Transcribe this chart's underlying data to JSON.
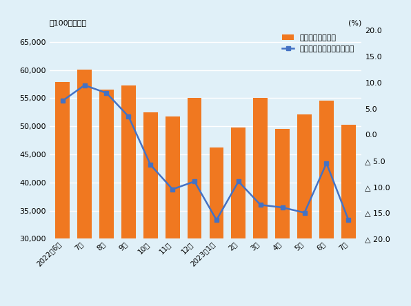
{
  "categories": [
    "2022年6月",
    "7月",
    "8月",
    "9月",
    "10月",
    "11月",
    "12月",
    "2023年1月",
    "2月",
    "3月",
    "4月",
    "5月",
    "6月",
    "7月"
  ],
  "bar_values": [
    57800,
    60100,
    56500,
    57200,
    52500,
    51700,
    55000,
    46200,
    49800,
    55000,
    49500,
    52100,
    54500,
    50300
  ],
  "line_values": [
    6.5,
    9.5,
    8.0,
    3.5,
    -5.8,
    -10.5,
    -9.0,
    -16.4,
    -9.0,
    -13.5,
    -14.0,
    -15.0,
    -5.5,
    -16.4
  ],
  "bar_color": "#F07820",
  "line_color": "#4472C4",
  "bg_color": "#E0F0F8",
  "left_ylim": [
    30000,
    67000
  ],
  "right_ylim": [
    -20.0,
    20.0
  ],
  "left_yticks": [
    30000,
    35000,
    40000,
    45000,
    50000,
    55000,
    60000,
    65000
  ],
  "right_yticks": [
    20.0,
    15.0,
    10.0,
    5.0,
    0.0,
    -5.0,
    -10.0,
    -15.0,
    -20.0
  ],
  "right_yticklabels": [
    "20.0",
    "15.0",
    "10.0",
    "5.0",
    "0.0",
    "△ 5.0",
    "△ 10.0",
    "△ 15.0",
    "△ 20.0"
  ],
  "left_label": "（100万ドル）",
  "right_label": "(%)",
  "legend1": "輸出総額（左軸）",
  "legend2": "輸出総額・前年比（右軸）",
  "marker": "s",
  "marker_size": 5,
  "line_width": 1.8
}
